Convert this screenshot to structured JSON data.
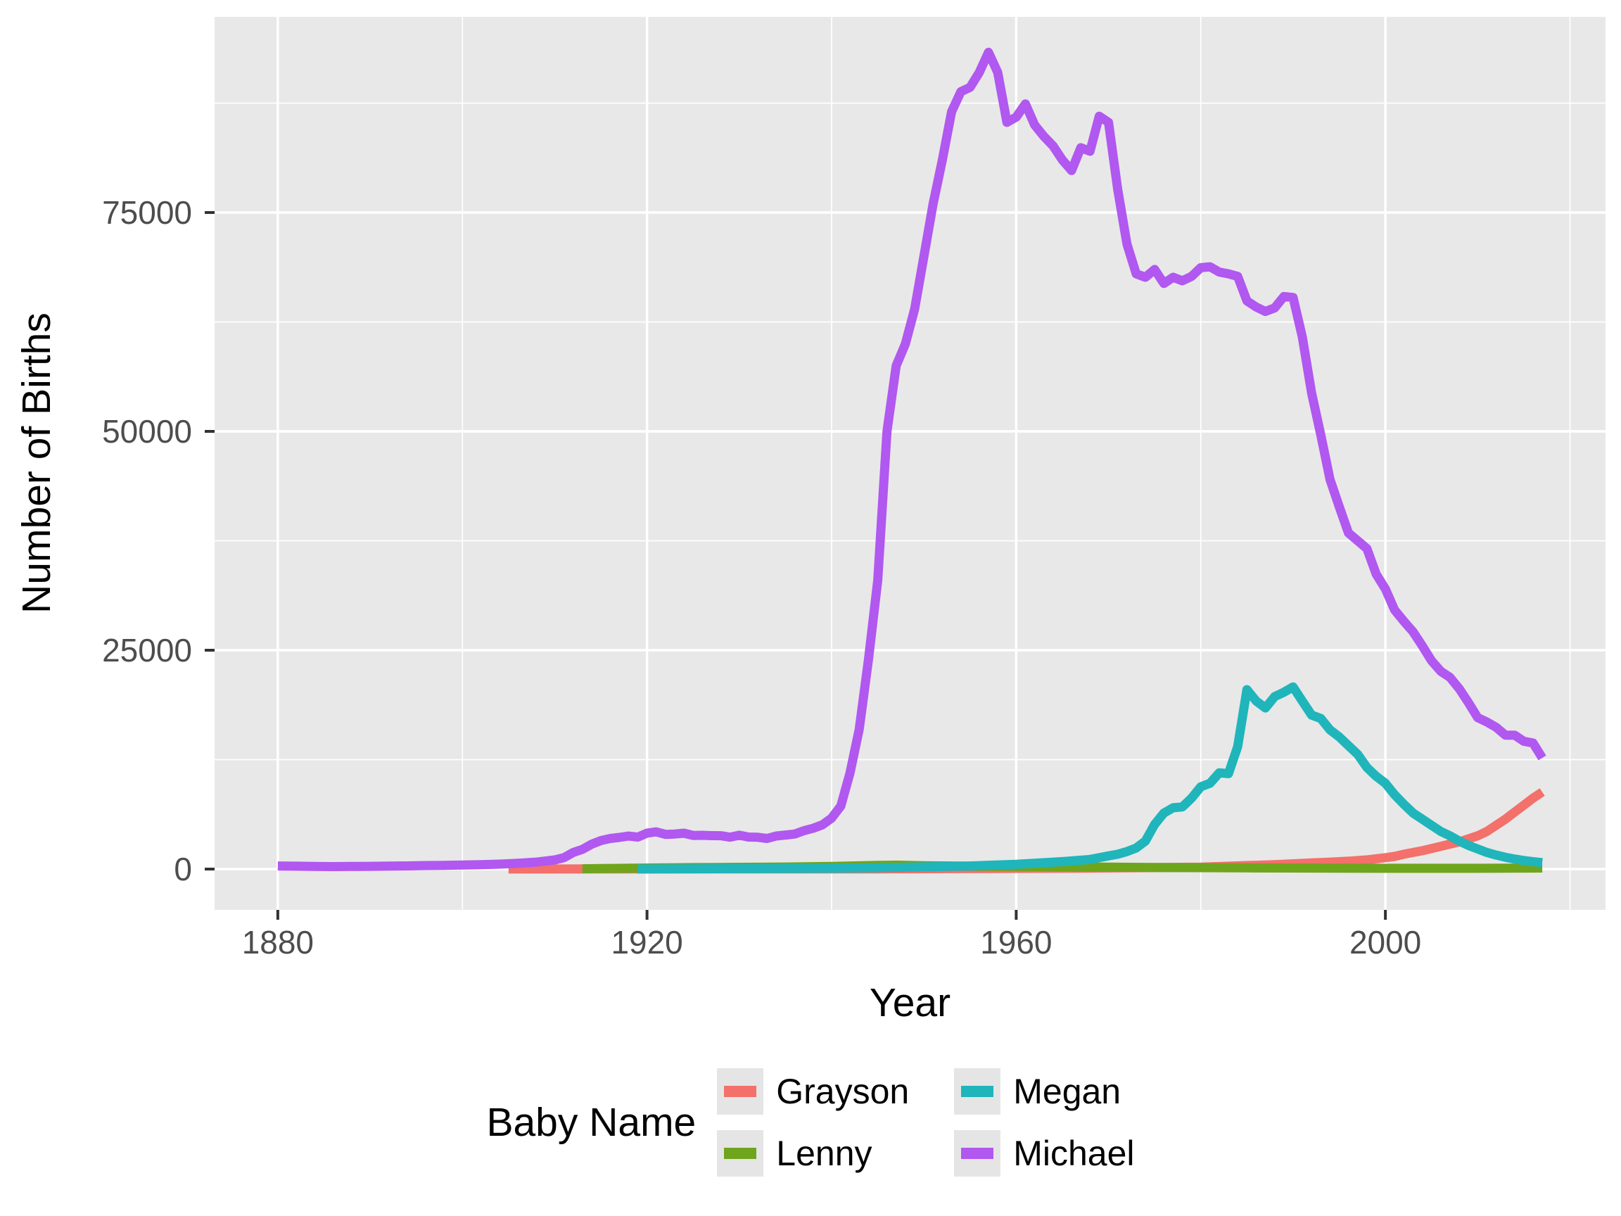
{
  "style": {
    "background": "#ffffff",
    "panel_background": "#e8e8e8",
    "grid_color": "#ffffff",
    "tick_mark_color": "#333333",
    "tick_label_color": "#4d4d4d",
    "axis_title_color": "#000000",
    "line_width": 13
  },
  "chart_data": {
    "type": "line",
    "title": "",
    "xlabel": "Year",
    "ylabel": "Number of Births",
    "grid": true,
    "legend": {
      "title": "Baby Name",
      "position": "bottom"
    },
    "x_axis": {
      "label": "Year",
      "ticks": [
        1880,
        1920,
        1960,
        2000
      ],
      "minor_ticks": [
        1900,
        1940,
        1980,
        2020
      ],
      "range": [
        1873.15,
        2023.85
      ]
    },
    "y_axis": {
      "label": "Number of Births",
      "ticks": [
        0,
        25000,
        50000,
        75000
      ],
      "minor_ticks": [
        12500,
        37500,
        62500,
        87500
      ],
      "range": [
        -4662,
        97346
      ]
    },
    "series": [
      {
        "name": "Grayson",
        "color": "#f3706b",
        "points": [
          [
            1905,
            8
          ],
          [
            1910,
            12
          ],
          [
            1915,
            14
          ],
          [
            1920,
            16
          ],
          [
            1925,
            15
          ],
          [
            1930,
            14
          ],
          [
            1935,
            15
          ],
          [
            1940,
            18
          ],
          [
            1945,
            25
          ],
          [
            1950,
            40
          ],
          [
            1955,
            55
          ],
          [
            1960,
            80
          ],
          [
            1965,
            100
          ],
          [
            1970,
            130
          ],
          [
            1975,
            170
          ],
          [
            1980,
            220
          ],
          [
            1985,
            400
          ],
          [
            1988,
            500
          ],
          [
            1990,
            600
          ],
          [
            1992,
            700
          ],
          [
            1994,
            800
          ],
          [
            1996,
            900
          ],
          [
            1998,
            1050
          ],
          [
            2000,
            1300
          ],
          [
            2001,
            1450
          ],
          [
            2002,
            1700
          ],
          [
            2003,
            1900
          ],
          [
            2004,
            2100
          ],
          [
            2005,
            2350
          ],
          [
            2006,
            2600
          ],
          [
            2007,
            2850
          ],
          [
            2008,
            3100
          ],
          [
            2009,
            3450
          ],
          [
            2010,
            3800
          ],
          [
            2011,
            4300
          ],
          [
            2012,
            5000
          ],
          [
            2013,
            5700
          ],
          [
            2014,
            6500
          ],
          [
            2015,
            7300
          ],
          [
            2016,
            8100
          ],
          [
            2017,
            8800
          ]
        ]
      },
      {
        "name": "Lenny",
        "color": "#6fa51d",
        "points": [
          [
            1913,
            30
          ],
          [
            1915,
            60
          ],
          [
            1920,
            120
          ],
          [
            1925,
            170
          ],
          [
            1930,
            200
          ],
          [
            1935,
            230
          ],
          [
            1940,
            300
          ],
          [
            1945,
            420
          ],
          [
            1947,
            450
          ],
          [
            1950,
            380
          ],
          [
            1955,
            330
          ],
          [
            1960,
            300
          ],
          [
            1965,
            250
          ],
          [
            1970,
            220
          ],
          [
            1975,
            180
          ],
          [
            1980,
            160
          ],
          [
            1985,
            140
          ],
          [
            1990,
            120
          ],
          [
            1995,
            100
          ],
          [
            2000,
            90
          ],
          [
            2005,
            85
          ],
          [
            2010,
            90
          ],
          [
            2013,
            100
          ],
          [
            2015,
            110
          ],
          [
            2017,
            120
          ]
        ]
      },
      {
        "name": "Megan",
        "color": "#1fb5bb",
        "points": [
          [
            1919,
            10
          ],
          [
            1925,
            30
          ],
          [
            1930,
            45
          ],
          [
            1935,
            60
          ],
          [
            1940,
            90
          ],
          [
            1945,
            150
          ],
          [
            1950,
            250
          ],
          [
            1955,
            350
          ],
          [
            1960,
            550
          ],
          [
            1965,
            850
          ],
          [
            1968,
            1100
          ],
          [
            1970,
            1500
          ],
          [
            1971,
            1700
          ],
          [
            1972,
            2000
          ],
          [
            1973,
            2400
          ],
          [
            1974,
            3200
          ],
          [
            1975,
            5100
          ],
          [
            1976,
            6400
          ],
          [
            1977,
            7000
          ],
          [
            1978,
            7100
          ],
          [
            1979,
            8100
          ],
          [
            1980,
            9400
          ],
          [
            1981,
            9800
          ],
          [
            1982,
            11000
          ],
          [
            1983,
            10900
          ],
          [
            1984,
            14000
          ],
          [
            1985,
            20500
          ],
          [
            1986,
            19200
          ],
          [
            1987,
            18400
          ],
          [
            1988,
            19700
          ],
          [
            1989,
            20200
          ],
          [
            1990,
            20800
          ],
          [
            1991,
            19200
          ],
          [
            1992,
            17600
          ],
          [
            1993,
            17200
          ],
          [
            1994,
            15900
          ],
          [
            1995,
            15100
          ],
          [
            1996,
            14100
          ],
          [
            1997,
            13100
          ],
          [
            1998,
            11600
          ],
          [
            1999,
            10600
          ],
          [
            2000,
            9800
          ],
          [
            2001,
            8500
          ],
          [
            2002,
            7400
          ],
          [
            2003,
            6400
          ],
          [
            2004,
            5700
          ],
          [
            2005,
            5000
          ],
          [
            2006,
            4300
          ],
          [
            2007,
            3800
          ],
          [
            2008,
            3200
          ],
          [
            2009,
            2700
          ],
          [
            2010,
            2300
          ],
          [
            2011,
            1900
          ],
          [
            2012,
            1600
          ],
          [
            2013,
            1350
          ],
          [
            2014,
            1150
          ],
          [
            2015,
            980
          ],
          [
            2016,
            850
          ],
          [
            2017,
            740
          ]
        ]
      },
      {
        "name": "Michael",
        "color": "#b158f0",
        "points": [
          [
            1880,
            354
          ],
          [
            1882,
            330
          ],
          [
            1884,
            295
          ],
          [
            1886,
            285
          ],
          [
            1888,
            300
          ],
          [
            1890,
            312
          ],
          [
            1892,
            345
          ],
          [
            1894,
            365
          ],
          [
            1896,
            400
          ],
          [
            1898,
            430
          ],
          [
            1900,
            461
          ],
          [
            1902,
            510
          ],
          [
            1904,
            565
          ],
          [
            1906,
            660
          ],
          [
            1908,
            800
          ],
          [
            1910,
            1045
          ],
          [
            1911,
            1300
          ],
          [
            1912,
            1900
          ],
          [
            1913,
            2250
          ],
          [
            1914,
            2840
          ],
          [
            1915,
            3250
          ],
          [
            1916,
            3490
          ],
          [
            1917,
            3620
          ],
          [
            1918,
            3770
          ],
          [
            1919,
            3650
          ],
          [
            1920,
            4110
          ],
          [
            1921,
            4250
          ],
          [
            1922,
            3960
          ],
          [
            1923,
            4000
          ],
          [
            1924,
            4100
          ],
          [
            1925,
            3840
          ],
          [
            1926,
            3860
          ],
          [
            1927,
            3820
          ],
          [
            1928,
            3810
          ],
          [
            1929,
            3640
          ],
          [
            1930,
            3870
          ],
          [
            1931,
            3660
          ],
          [
            1932,
            3630
          ],
          [
            1933,
            3500
          ],
          [
            1934,
            3780
          ],
          [
            1935,
            3890
          ],
          [
            1936,
            4000
          ],
          [
            1937,
            4380
          ],
          [
            1938,
            4660
          ],
          [
            1939,
            5060
          ],
          [
            1940,
            5820
          ],
          [
            1941,
            7200
          ],
          [
            1942,
            11000
          ],
          [
            1943,
            16000
          ],
          [
            1944,
            24000
          ],
          [
            1945,
            33000
          ],
          [
            1946,
            50000
          ],
          [
            1947,
            57500
          ],
          [
            1948,
            60000
          ],
          [
            1949,
            64000
          ],
          [
            1950,
            70000
          ],
          [
            1951,
            76000
          ],
          [
            1952,
            81000
          ],
          [
            1953,
            86500
          ],
          [
            1954,
            88800
          ],
          [
            1955,
            89300
          ],
          [
            1956,
            91000
          ],
          [
            1957,
            93300
          ],
          [
            1958,
            91000
          ],
          [
            1959,
            85300
          ],
          [
            1960,
            85900
          ],
          [
            1961,
            87400
          ],
          [
            1962,
            85000
          ],
          [
            1963,
            83700
          ],
          [
            1964,
            82600
          ],
          [
            1965,
            81000
          ],
          [
            1966,
            79800
          ],
          [
            1967,
            82400
          ],
          [
            1968,
            82000
          ],
          [
            1969,
            86000
          ],
          [
            1970,
            85300
          ],
          [
            1971,
            77600
          ],
          [
            1972,
            71400
          ],
          [
            1973,
            68000
          ],
          [
            1974,
            67600
          ],
          [
            1975,
            68500
          ],
          [
            1976,
            66900
          ],
          [
            1977,
            67600
          ],
          [
            1978,
            67200
          ],
          [
            1979,
            67700
          ],
          [
            1980,
            68700
          ],
          [
            1981,
            68800
          ],
          [
            1982,
            68200
          ],
          [
            1983,
            68000
          ],
          [
            1984,
            67700
          ],
          [
            1985,
            64900
          ],
          [
            1986,
            64200
          ],
          [
            1987,
            63700
          ],
          [
            1988,
            64100
          ],
          [
            1989,
            65400
          ],
          [
            1990,
            65300
          ],
          [
            1991,
            60800
          ],
          [
            1992,
            54400
          ],
          [
            1993,
            49600
          ],
          [
            1994,
            44500
          ],
          [
            1995,
            41400
          ],
          [
            1996,
            38400
          ],
          [
            1997,
            37500
          ],
          [
            1998,
            36600
          ],
          [
            1999,
            33700
          ],
          [
            2000,
            32000
          ],
          [
            2001,
            29600
          ],
          [
            2002,
            28300
          ],
          [
            2003,
            27100
          ],
          [
            2004,
            25500
          ],
          [
            2005,
            23800
          ],
          [
            2006,
            22600
          ],
          [
            2007,
            21900
          ],
          [
            2008,
            20600
          ],
          [
            2009,
            19000
          ],
          [
            2010,
            17300
          ],
          [
            2011,
            16800
          ],
          [
            2012,
            16200
          ],
          [
            2013,
            15300
          ],
          [
            2014,
            15300
          ],
          [
            2015,
            14600
          ],
          [
            2016,
            14400
          ],
          [
            2017,
            12700
          ]
        ]
      }
    ]
  }
}
